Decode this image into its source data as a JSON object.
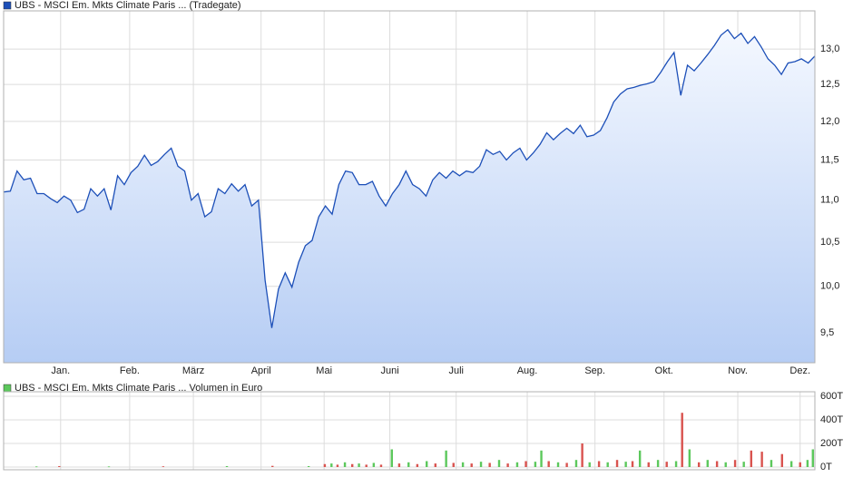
{
  "chart_data": [
    {
      "type": "line",
      "series": [
        {
          "name": "UBS - MSCI Em. Mkts Climate Paris ...  (Tradegate)",
          "color": "#1c4fb8",
          "values": [
            11.1,
            11.11,
            11.36,
            11.25,
            11.27,
            11.08,
            11.08,
            11.02,
            10.97,
            11.05,
            11.0,
            10.85,
            10.89,
            11.14,
            11.05,
            11.14,
            10.88,
            11.3,
            11.19,
            11.34,
            11.42,
            11.56,
            11.43,
            11.48,
            11.57,
            11.65,
            11.42,
            11.36,
            11.0,
            11.08,
            10.8,
            10.86,
            11.14,
            11.08,
            11.2,
            11.11,
            11.19,
            10.93,
            11.0,
            10.07,
            9.55,
            9.97,
            10.15,
            9.99,
            10.27,
            10.46,
            10.52,
            10.8,
            10.93,
            10.83,
            11.19,
            11.36,
            11.34,
            11.19,
            11.19,
            11.23,
            11.05,
            10.93,
            11.08,
            11.19,
            11.36,
            11.19,
            11.14,
            11.05,
            11.25,
            11.34,
            11.27,
            11.36,
            11.3,
            11.36,
            11.34,
            11.42,
            11.63,
            11.57,
            11.61,
            11.5,
            11.59,
            11.65,
            11.5,
            11.59,
            11.7,
            11.85,
            11.76,
            11.84,
            11.91,
            11.84,
            11.95,
            11.8,
            11.82,
            11.88,
            12.05,
            12.26,
            12.37,
            12.44,
            12.46,
            12.49,
            12.51,
            12.54,
            12.67,
            12.82,
            12.95,
            12.35,
            12.77,
            12.69,
            12.8,
            12.92,
            13.05,
            13.2,
            13.28,
            13.15,
            13.23,
            13.08,
            13.18,
            13.03,
            12.86,
            12.77,
            12.64,
            12.8,
            12.82,
            12.86,
            12.8,
            12.9
          ]
        }
      ],
      "xlim": [
        0,
        121
      ],
      "xticks": [
        {
          "value": 8.5,
          "label": "Jan."
        },
        {
          "value": 18.8,
          "label": "Feb."
        },
        {
          "value": 28.3,
          "label": "März"
        },
        {
          "value": 38.4,
          "label": "April"
        },
        {
          "value": 47.8,
          "label": "Mai"
        },
        {
          "value": 57.6,
          "label": "Juni"
        },
        {
          "value": 67.5,
          "label": "Juli"
        },
        {
          "value": 78.1,
          "label": "Aug."
        },
        {
          "value": 88.2,
          "label": "Sep."
        },
        {
          "value": 98.5,
          "label": "Okt."
        },
        {
          "value": 109.5,
          "label": "Nov."
        },
        {
          "value": 118.8,
          "label": "Dez."
        }
      ],
      "ylim": [
        9.19,
        13.56
      ],
      "yticks": [
        {
          "value": 9.5,
          "label": "9,5"
        },
        {
          "value": 10,
          "label": "10,0"
        },
        {
          "value": 10.5,
          "label": "10,5"
        },
        {
          "value": 11,
          "label": "11,0"
        },
        {
          "value": 11.5,
          "label": "11,5"
        },
        {
          "value": 12,
          "label": "12,0"
        },
        {
          "value": 12.5,
          "label": "12,5"
        },
        {
          "value": 13,
          "label": "13,0"
        }
      ],
      "log_scale": true,
      "grid": true
    },
    {
      "type": "bar",
      "x": [
        4.9,
        8.3,
        15.7,
        23.8,
        33.3,
        40.1,
        45.5,
        47.9,
        48.9,
        49.8,
        50.9,
        52.0,
        53.0,
        54.1,
        55.2,
        56.3,
        57.9,
        59.0,
        60.4,
        61.7,
        63.1,
        64.4,
        66.0,
        67.1,
        68.5,
        69.8,
        71.2,
        72.5,
        73.9,
        75.2,
        76.6,
        77.9,
        79.3,
        80.2,
        81.3,
        82.7,
        84.0,
        85.4,
        86.3,
        87.4,
        88.8,
        90.1,
        91.5,
        92.8,
        93.8,
        94.9,
        96.2,
        97.6,
        98.9,
        100.3,
        101.2,
        102.3,
        103.7,
        105.0,
        106.4,
        107.7,
        109.1,
        110.4,
        111.5,
        113.1,
        114.5,
        116.1,
        117.5,
        118.8,
        119.9,
        120.7
      ],
      "series": [
        {
          "name": "UBS - MSCI Em. Mkts Climate Paris ...  Volumen in Euro",
          "color": "#5cc85c",
          "values": [
            5000,
            8000,
            5000,
            6000,
            8000,
            10000,
            8000,
            25000,
            30000,
            20000,
            40000,
            25000,
            30000,
            20000,
            35000,
            20000,
            150000,
            30000,
            40000,
            25000,
            50000,
            30000,
            140000,
            35000,
            40000,
            30000,
            45000,
            35000,
            60000,
            30000,
            40000,
            50000,
            45000,
            140000,
            50000,
            40000,
            35000,
            60000,
            200000,
            40000,
            50000,
            40000,
            60000,
            45000,
            50000,
            140000,
            40000,
            60000,
            45000,
            50000,
            460000,
            150000,
            40000,
            60000,
            50000,
            40000,
            60000,
            45000,
            140000,
            130000,
            60000,
            110000,
            50000,
            40000,
            60000,
            150000
          ],
          "colors": [
            "#5cc85c",
            "#d9534f",
            "#5cc85c",
            "#d9534f",
            "#5cc85c",
            "#d9534f",
            "#5cc85c",
            "#d9534f",
            "#5cc85c",
            "#d9534f",
            "#5cc85c",
            "#d9534f",
            "#5cc85c",
            "#d9534f",
            "#5cc85c",
            "#d9534f",
            "#5cc85c",
            "#d9534f",
            "#5cc85c",
            "#d9534f",
            "#5cc85c",
            "#d9534f",
            "#5cc85c",
            "#d9534f",
            "#5cc85c",
            "#d9534f",
            "#5cc85c",
            "#d9534f",
            "#5cc85c",
            "#d9534f",
            "#5cc85c",
            "#d9534f",
            "#5cc85c",
            "#5cc85c",
            "#d9534f",
            "#5cc85c",
            "#d9534f",
            "#5cc85c",
            "#d9534f",
            "#5cc85c",
            "#d9534f",
            "#5cc85c",
            "#d9534f",
            "#5cc85c",
            "#d9534f",
            "#5cc85c",
            "#d9534f",
            "#5cc85c",
            "#d9534f",
            "#5cc85c",
            "#d9534f",
            "#5cc85c",
            "#d9534f",
            "#5cc85c",
            "#d9534f",
            "#5cc85c",
            "#d9534f",
            "#5cc85c",
            "#d9534f",
            "#d9534f",
            "#5cc85c",
            "#d9534f",
            "#5cc85c",
            "#d9534f",
            "#5cc85c",
            "#5cc85c"
          ]
        }
      ],
      "xlim": [
        0,
        121
      ],
      "ylim": [
        0,
        600000
      ],
      "yticks": [
        {
          "value": 0,
          "label": "0T"
        },
        {
          "value": 200000,
          "label": "200T"
        },
        {
          "value": 400000,
          "label": "400T"
        },
        {
          "value": 600000,
          "label": "600T"
        }
      ],
      "grid": true
    }
  ]
}
